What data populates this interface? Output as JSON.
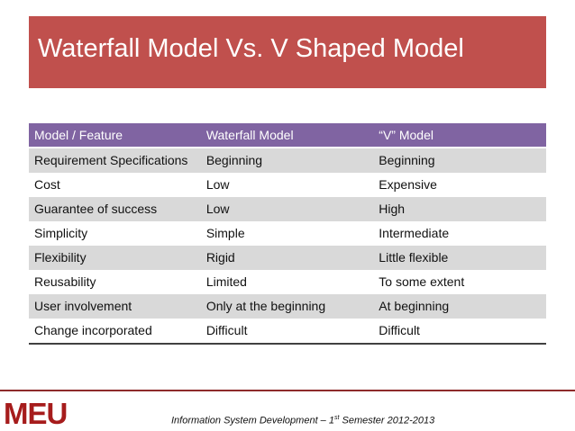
{
  "slide": {
    "title": "Waterfall Model  Vs.  V Shaped Model"
  },
  "table": {
    "headers": [
      "Model / Feature",
      "Waterfall Model",
      "“V” Model"
    ],
    "rows": [
      [
        "Requirement Specifications",
        "Beginning",
        "Beginning"
      ],
      [
        "Cost",
        "Low",
        "Expensive"
      ],
      [
        "Guarantee of success",
        "Low",
        "High"
      ],
      [
        "Simplicity",
        "Simple",
        "Intermediate"
      ],
      [
        "Flexibility",
        "Rigid",
        "Little flexible"
      ],
      [
        "Reusability",
        "Limited",
        "To some extent"
      ],
      [
        "User involvement",
        "Only at the beginning",
        "At beginning"
      ],
      [
        "Change incorporated",
        "Difficult",
        "Difficult"
      ]
    ]
  },
  "footer": {
    "logo": "MEU",
    "text_prefix": "Information System Development – 1",
    "text_sup": "st",
    "text_suffix": " Semester 2012-2013"
  },
  "colors": {
    "title_bg": "#c0504d",
    "header_bg": "#8064a2",
    "band_bg": "#d9d9d9",
    "logo": "#a61c1c"
  }
}
